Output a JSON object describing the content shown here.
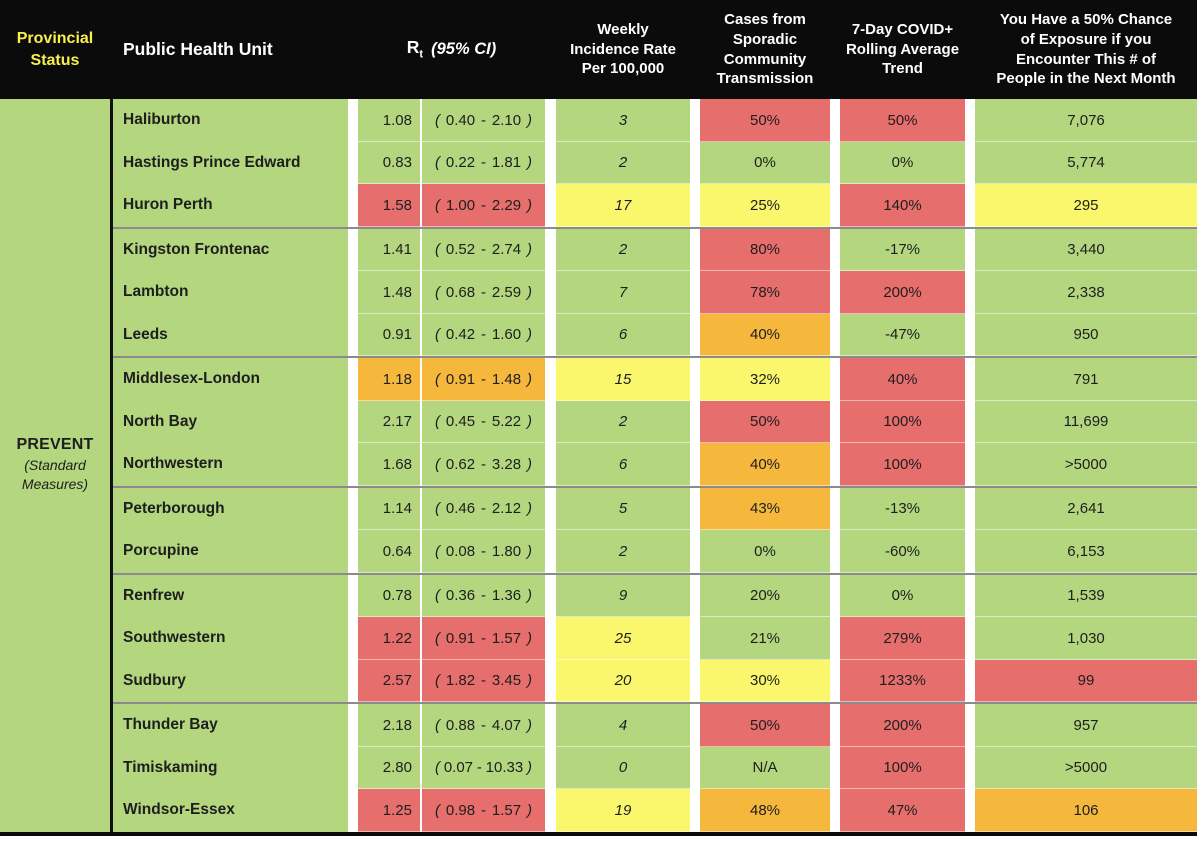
{
  "header": {
    "provincial_status_label": "Provincial\nStatus",
    "phu_label": "Public Health Unit",
    "rt_label": "R",
    "rt_sub": "t",
    "rt_ci_label": "(95% CI)",
    "weekly_label": "Weekly\nIncidence Rate\nPer 100,000",
    "sporadic_label": "Cases from\nSporadic\nCommunity\nTransmission",
    "rolling_label": "7-Day COVID+\nRolling Average\nTrend",
    "exposure_label": "You Have a 50% Chance\nof Exposure if you\nEncounter This # of\nPeople in the Next Month"
  },
  "status_group": {
    "name": "PREVENT",
    "qualifier": "(Standard\nMeasures)"
  },
  "colors": {
    "green": "#b3d67f",
    "red": "#e66f6d",
    "yellow": "#faf76d",
    "orange": "#f5b83d",
    "header_bg": "#0b0b0b",
    "header_text": "#ffffff",
    "status_text": "#f8ef4e",
    "separator": "#8b8b8b",
    "text": "#1e1e1e"
  },
  "chart_data": {
    "type": "table",
    "columns": [
      "Provincial Status",
      "Public Health Unit",
      "Rt (95% CI)",
      "Weekly Incidence Rate Per 100,000",
      "Cases from Sporadic Community Transmission",
      "7-Day COVID+ Rolling Average Trend",
      "You Have a 50% Chance of Exposure if you Encounter This # of People in the Next Month"
    ],
    "provincial_status": "PREVENT (Standard Measures)",
    "rows": [
      {
        "phu": "Haliburton",
        "rt": "1.08",
        "ci_low": "0.40",
        "ci_high": "2.10",
        "rt_color": "green",
        "incidence": "3",
        "incidence_color": "green",
        "sporadic": "50%",
        "sporadic_color": "red",
        "rolling": "50%",
        "rolling_color": "red",
        "exposure": "7,076",
        "exposure_color": "green",
        "group_end": false
      },
      {
        "phu": "Hastings Prince Edward",
        "rt": "0.83",
        "ci_low": "0.22",
        "ci_high": "1.81",
        "rt_color": "green",
        "incidence": "2",
        "incidence_color": "green",
        "sporadic": "0%",
        "sporadic_color": "green",
        "rolling": "0%",
        "rolling_color": "green",
        "exposure": "5,774",
        "exposure_color": "green",
        "group_end": false
      },
      {
        "phu": "Huron Perth",
        "rt": "1.58",
        "ci_low": "1.00",
        "ci_high": "2.29",
        "rt_color": "red",
        "incidence": "17",
        "incidence_color": "yellow",
        "sporadic": "25%",
        "sporadic_color": "yellow",
        "rolling": "140%",
        "rolling_color": "red",
        "exposure": "295",
        "exposure_color": "yellow",
        "group_end": true
      },
      {
        "phu": "Kingston Frontenac",
        "rt": "1.41",
        "ci_low": "0.52",
        "ci_high": "2.74",
        "rt_color": "green",
        "incidence": "2",
        "incidence_color": "green",
        "sporadic": "80%",
        "sporadic_color": "red",
        "rolling": "-17%",
        "rolling_color": "green",
        "exposure": "3,440",
        "exposure_color": "green",
        "group_end": false
      },
      {
        "phu": "Lambton",
        "rt": "1.48",
        "ci_low": "0.68",
        "ci_high": "2.59",
        "rt_color": "green",
        "incidence": "7",
        "incidence_color": "green",
        "sporadic": "78%",
        "sporadic_color": "red",
        "rolling": "200%",
        "rolling_color": "red",
        "exposure": "2,338",
        "exposure_color": "green",
        "group_end": false
      },
      {
        "phu": "Leeds",
        "rt": "0.91",
        "ci_low": "0.42",
        "ci_high": "1.60",
        "rt_color": "green",
        "incidence": "6",
        "incidence_color": "green",
        "sporadic": "40%",
        "sporadic_color": "orange",
        "rolling": "-47%",
        "rolling_color": "green",
        "exposure": "950",
        "exposure_color": "green",
        "group_end": true
      },
      {
        "phu": "Middlesex-London",
        "rt": "1.18",
        "ci_low": "0.91",
        "ci_high": "1.48",
        "rt_color": "orange",
        "incidence": "15",
        "incidence_color": "yellow",
        "sporadic": "32%",
        "sporadic_color": "yellow",
        "rolling": "40%",
        "rolling_color": "red",
        "exposure": "791",
        "exposure_color": "green",
        "group_end": false
      },
      {
        "phu": "North Bay",
        "rt": "2.17",
        "ci_low": "0.45",
        "ci_high": "5.22",
        "rt_color": "green",
        "incidence": "2",
        "incidence_color": "green",
        "sporadic": "50%",
        "sporadic_color": "red",
        "rolling": "100%",
        "rolling_color": "red",
        "exposure": "11,699",
        "exposure_color": "green",
        "group_end": false
      },
      {
        "phu": "Northwestern",
        "rt": "1.68",
        "ci_low": "0.62",
        "ci_high": "3.28",
        "rt_color": "green",
        "incidence": "6",
        "incidence_color": "green",
        "sporadic": "40%",
        "sporadic_color": "orange",
        "rolling": "100%",
        "rolling_color": "red",
        "exposure": ">5000",
        "exposure_color": "green",
        "group_end": true
      },
      {
        "phu": "Peterborough",
        "rt": "1.14",
        "ci_low": "0.46",
        "ci_high": "2.12",
        "rt_color": "green",
        "incidence": "5",
        "incidence_color": "green",
        "sporadic": "43%",
        "sporadic_color": "orange",
        "rolling": "-13%",
        "rolling_color": "green",
        "exposure": "2,641",
        "exposure_color": "green",
        "group_end": false
      },
      {
        "phu": "Porcupine",
        "rt": "0.64",
        "ci_low": "0.08",
        "ci_high": "1.80",
        "rt_color": "green",
        "incidence": "2",
        "incidence_color": "green",
        "sporadic": "0%",
        "sporadic_color": "green",
        "rolling": "-60%",
        "rolling_color": "green",
        "exposure": "6,153",
        "exposure_color": "green",
        "group_end": true
      },
      {
        "phu": "Renfrew",
        "rt": "0.78",
        "ci_low": "0.36",
        "ci_high": "1.36",
        "rt_color": "green",
        "incidence": "9",
        "incidence_color": "green",
        "sporadic": "20%",
        "sporadic_color": "green",
        "rolling": "0%",
        "rolling_color": "green",
        "exposure": "1,539",
        "exposure_color": "green",
        "group_end": false
      },
      {
        "phu": "Southwestern",
        "rt": "1.22",
        "ci_low": "0.91",
        "ci_high": "1.57",
        "rt_color": "red",
        "incidence": "25",
        "incidence_color": "yellow",
        "sporadic": "21%",
        "sporadic_color": "green",
        "rolling": "279%",
        "rolling_color": "red",
        "exposure": "1,030",
        "exposure_color": "green",
        "group_end": false
      },
      {
        "phu": "Sudbury",
        "rt": "2.57",
        "ci_low": "1.82",
        "ci_high": "3.45",
        "rt_color": "red",
        "incidence": "20",
        "incidence_color": "yellow",
        "sporadic": "30%",
        "sporadic_color": "yellow",
        "rolling": "1233%",
        "rolling_color": "red",
        "exposure": "99",
        "exposure_color": "red",
        "group_end": true
      },
      {
        "phu": "Thunder Bay",
        "rt": "2.18",
        "ci_low": "0.88",
        "ci_high": "4.07",
        "rt_color": "green",
        "incidence": "4",
        "incidence_color": "green",
        "sporadic": "50%",
        "sporadic_color": "red",
        "rolling": "200%",
        "rolling_color": "red",
        "exposure": "957",
        "exposure_color": "green",
        "group_end": false
      },
      {
        "phu": "Timiskaming",
        "rt": "2.80",
        "ci_low": "0.07",
        "ci_high": "10.33",
        "rt_color": "green",
        "incidence": "0",
        "incidence_color": "green",
        "sporadic": "N/A",
        "sporadic_color": "green",
        "rolling": "100%",
        "rolling_color": "red",
        "exposure": ">5000",
        "exposure_color": "green",
        "group_end": false
      },
      {
        "phu": "Windsor-Essex",
        "rt": "1.25",
        "ci_low": "0.98",
        "ci_high": "1.57",
        "rt_color": "red",
        "incidence": "19",
        "incidence_color": "yellow",
        "sporadic": "48%",
        "sporadic_color": "orange",
        "rolling": "47%",
        "rolling_color": "red",
        "exposure": "106",
        "exposure_color": "orange",
        "group_end": false
      }
    ]
  }
}
